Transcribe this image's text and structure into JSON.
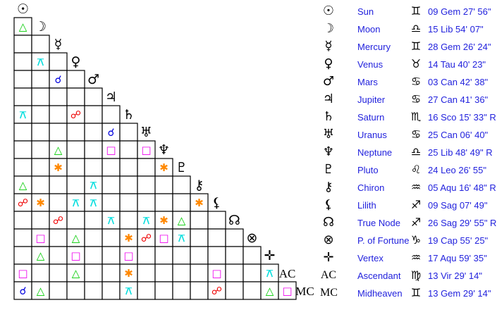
{
  "bodies": [
    {
      "glyph": "☉",
      "name": "Sun",
      "sign": "♊",
      "position": "09 Gem 27' 56\""
    },
    {
      "glyph": "☽",
      "name": "Moon",
      "sign": "♎",
      "position": "15 Lib 54' 07\""
    },
    {
      "glyph": "☿",
      "name": "Mercury",
      "sign": "♊",
      "position": "28 Gem 26' 24\""
    },
    {
      "glyph": "♀",
      "name": "Venus",
      "sign": "♉",
      "position": "14 Tau 40' 23\""
    },
    {
      "glyph": "♂",
      "name": "Mars",
      "sign": "♋",
      "position": "03 Can 42' 38\""
    },
    {
      "glyph": "♃",
      "name": "Jupiter",
      "sign": "♋",
      "position": "27 Can 41' 36\""
    },
    {
      "glyph": "♄",
      "name": "Saturn",
      "sign": "♏",
      "position": "16 Sco 15' 33\" R"
    },
    {
      "glyph": "♅",
      "name": "Uranus",
      "sign": "♋",
      "position": "25 Can 06' 40\""
    },
    {
      "glyph": "♆",
      "name": "Neptune",
      "sign": "♎",
      "position": "25 Lib 48' 49\" R"
    },
    {
      "glyph": "♇",
      "name": "Pluto",
      "sign": "♌",
      "position": "24 Leo 26' 55\""
    },
    {
      "glyph": "⚷",
      "name": "Chiron",
      "sign": "♒",
      "position": "05 Aqu 16' 48\" R"
    },
    {
      "glyph": "⚸",
      "name": "Lilith",
      "sign": "♐",
      "position": "09 Sag 07' 49\""
    },
    {
      "glyph": "☊",
      "name": "True Node",
      "sign": "♐",
      "position": "26 Sag 29' 55\" R"
    },
    {
      "glyph": "⊗",
      "name": "P. of Fortune",
      "sign": "♑",
      "position": "19 Cap 55' 25\""
    },
    {
      "glyph": "✛",
      "name": "Vertex",
      "sign": "♒",
      "position": "17 Aqu 59' 35\""
    },
    {
      "glyph": "AC",
      "name": "Ascendant",
      "sign": "♍",
      "position": "13 Vir 29' 14\""
    },
    {
      "glyph": "MC",
      "name": "Midheaven",
      "sign": "♊",
      "position": "13 Gem 29' 14\""
    }
  ],
  "aspect_types": {
    "conjunction": {
      "glyph": "☌",
      "color": "#0000dd"
    },
    "opposition": {
      "glyph": "☍",
      "color": "#ee0000"
    },
    "trine": {
      "glyph": "△",
      "color": "#00cc00"
    },
    "square": {
      "glyph": "□",
      "color": "#ee00ee"
    },
    "sextile": {
      "glyph": "✱",
      "color": "#ff8800"
    },
    "quincunx": {
      "glyph": "⚻",
      "color": "#00dddd"
    }
  },
  "aspects": [
    [
      "Moon",
      "Sun",
      "trine"
    ],
    [
      "Venus",
      "Moon",
      "quincunx"
    ],
    [
      "Mars",
      "Mercury",
      "conjunction"
    ],
    [
      "Saturn",
      "Sun",
      "quincunx"
    ],
    [
      "Saturn",
      "Venus",
      "opposition"
    ],
    [
      "Uranus",
      "Jupiter",
      "conjunction"
    ],
    [
      "Neptune",
      "Mercury",
      "trine"
    ],
    [
      "Neptune",
      "Jupiter",
      "square"
    ],
    [
      "Neptune",
      "Uranus",
      "square"
    ],
    [
      "Pluto",
      "Mercury",
      "sextile"
    ],
    [
      "Pluto",
      "Neptune",
      "sextile"
    ],
    [
      "Chiron",
      "Sun",
      "trine"
    ],
    [
      "Chiron",
      "Mars",
      "quincunx"
    ],
    [
      "Lilith",
      "Sun",
      "opposition"
    ],
    [
      "Lilith",
      "Moon",
      "sextile"
    ],
    [
      "Lilith",
      "Venus",
      "quincunx"
    ],
    [
      "Lilith",
      "Mars",
      "quincunx"
    ],
    [
      "Lilith",
      "Chiron",
      "sextile"
    ],
    [
      "True Node",
      "Mercury",
      "opposition"
    ],
    [
      "True Node",
      "Jupiter",
      "quincunx"
    ],
    [
      "True Node",
      "Uranus",
      "quincunx"
    ],
    [
      "True Node",
      "Neptune",
      "sextile"
    ],
    [
      "True Node",
      "Pluto",
      "trine"
    ],
    [
      "P. of Fortune",
      "Moon",
      "square"
    ],
    [
      "P. of Fortune",
      "Venus",
      "trine"
    ],
    [
      "P. of Fortune",
      "Saturn",
      "sextile"
    ],
    [
      "P. of Fortune",
      "Uranus",
      "opposition"
    ],
    [
      "P. of Fortune",
      "Neptune",
      "square"
    ],
    [
      "P. of Fortune",
      "Pluto",
      "quincunx"
    ],
    [
      "Vertex",
      "Moon",
      "trine"
    ],
    [
      "Vertex",
      "Venus",
      "square"
    ],
    [
      "Vertex",
      "Saturn",
      "square"
    ],
    [
      "Ascendant",
      "Sun",
      "square"
    ],
    [
      "Ascendant",
      "Venus",
      "trine"
    ],
    [
      "Ascendant",
      "Saturn",
      "sextile"
    ],
    [
      "Ascendant",
      "Lilith",
      "square"
    ],
    [
      "Ascendant",
      "Vertex",
      "quincunx"
    ],
    [
      "Midheaven",
      "Sun",
      "conjunction"
    ],
    [
      "Midheaven",
      "Moon",
      "trine"
    ],
    [
      "Midheaven",
      "Saturn",
      "quincunx"
    ],
    [
      "Midheaven",
      "Lilith",
      "opposition"
    ],
    [
      "Midheaven",
      "Vertex",
      "trine"
    ],
    [
      "Midheaven",
      "Ascendant",
      "square"
    ]
  ]
}
